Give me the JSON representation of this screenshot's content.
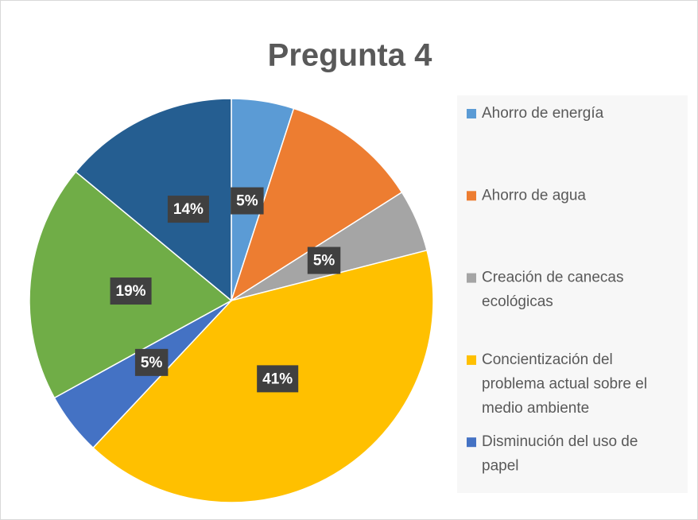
{
  "chart_data": {
    "type": "pie",
    "title": "Pregunta 4",
    "categories": [
      "Ahorro de energía",
      "Ahorro de agua",
      "Creación de canecas ecológicas",
      "Concientización del problema actual sobre el medio ambiente",
      "Disminución del uso de papel",
      null,
      null
    ],
    "values": [
      5,
      11,
      5,
      41,
      5,
      19,
      14
    ],
    "value_labels": [
      "5%",
      null,
      "5%",
      "41%",
      "5%",
      "19%",
      "14%"
    ],
    "colors": [
      "#5b9bd5",
      "#ed7d31",
      "#a5a5a5",
      "#ffc000",
      "#4472c4",
      "#70ad47",
      "#255e91"
    ],
    "legend": "right"
  }
}
